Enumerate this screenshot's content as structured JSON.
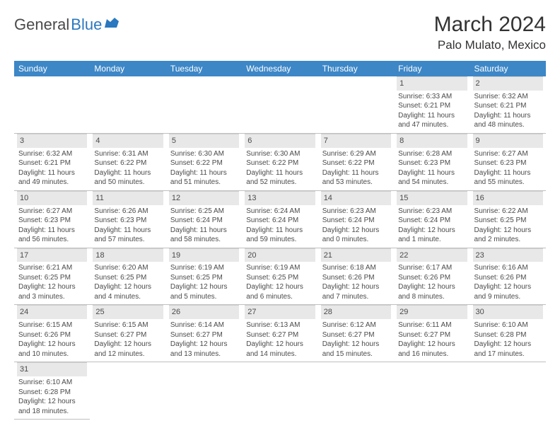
{
  "logo": {
    "part1": "General",
    "part2": "Blue"
  },
  "title": "March 2024",
  "location": "Palo Mulato, Mexico",
  "colors": {
    "header_bg": "#3d87c7",
    "header_text": "#ffffff",
    "daynum_bg": "#e8e8e8",
    "border": "#bfbfbf",
    "text": "#4a4a4a",
    "logo_blue": "#2a78bf",
    "logo_gray": "#4a4a4a"
  },
  "weekdays": [
    "Sunday",
    "Monday",
    "Tuesday",
    "Wednesday",
    "Thursday",
    "Friday",
    "Saturday"
  ],
  "weeks": [
    [
      null,
      null,
      null,
      null,
      null,
      {
        "num": "1",
        "sunrise": "Sunrise: 6:33 AM",
        "sunset": "Sunset: 6:21 PM",
        "day1": "Daylight: 11 hours",
        "day2": "and 47 minutes."
      },
      {
        "num": "2",
        "sunrise": "Sunrise: 6:32 AM",
        "sunset": "Sunset: 6:21 PM",
        "day1": "Daylight: 11 hours",
        "day2": "and 48 minutes."
      }
    ],
    [
      {
        "num": "3",
        "sunrise": "Sunrise: 6:32 AM",
        "sunset": "Sunset: 6:21 PM",
        "day1": "Daylight: 11 hours",
        "day2": "and 49 minutes."
      },
      {
        "num": "4",
        "sunrise": "Sunrise: 6:31 AM",
        "sunset": "Sunset: 6:22 PM",
        "day1": "Daylight: 11 hours",
        "day2": "and 50 minutes."
      },
      {
        "num": "5",
        "sunrise": "Sunrise: 6:30 AM",
        "sunset": "Sunset: 6:22 PM",
        "day1": "Daylight: 11 hours",
        "day2": "and 51 minutes."
      },
      {
        "num": "6",
        "sunrise": "Sunrise: 6:30 AM",
        "sunset": "Sunset: 6:22 PM",
        "day1": "Daylight: 11 hours",
        "day2": "and 52 minutes."
      },
      {
        "num": "7",
        "sunrise": "Sunrise: 6:29 AM",
        "sunset": "Sunset: 6:22 PM",
        "day1": "Daylight: 11 hours",
        "day2": "and 53 minutes."
      },
      {
        "num": "8",
        "sunrise": "Sunrise: 6:28 AM",
        "sunset": "Sunset: 6:23 PM",
        "day1": "Daylight: 11 hours",
        "day2": "and 54 minutes."
      },
      {
        "num": "9",
        "sunrise": "Sunrise: 6:27 AM",
        "sunset": "Sunset: 6:23 PM",
        "day1": "Daylight: 11 hours",
        "day2": "and 55 minutes."
      }
    ],
    [
      {
        "num": "10",
        "sunrise": "Sunrise: 6:27 AM",
        "sunset": "Sunset: 6:23 PM",
        "day1": "Daylight: 11 hours",
        "day2": "and 56 minutes."
      },
      {
        "num": "11",
        "sunrise": "Sunrise: 6:26 AM",
        "sunset": "Sunset: 6:23 PM",
        "day1": "Daylight: 11 hours",
        "day2": "and 57 minutes."
      },
      {
        "num": "12",
        "sunrise": "Sunrise: 6:25 AM",
        "sunset": "Sunset: 6:24 PM",
        "day1": "Daylight: 11 hours",
        "day2": "and 58 minutes."
      },
      {
        "num": "13",
        "sunrise": "Sunrise: 6:24 AM",
        "sunset": "Sunset: 6:24 PM",
        "day1": "Daylight: 11 hours",
        "day2": "and 59 minutes."
      },
      {
        "num": "14",
        "sunrise": "Sunrise: 6:23 AM",
        "sunset": "Sunset: 6:24 PM",
        "day1": "Daylight: 12 hours",
        "day2": "and 0 minutes."
      },
      {
        "num": "15",
        "sunrise": "Sunrise: 6:23 AM",
        "sunset": "Sunset: 6:24 PM",
        "day1": "Daylight: 12 hours",
        "day2": "and 1 minute."
      },
      {
        "num": "16",
        "sunrise": "Sunrise: 6:22 AM",
        "sunset": "Sunset: 6:25 PM",
        "day1": "Daylight: 12 hours",
        "day2": "and 2 minutes."
      }
    ],
    [
      {
        "num": "17",
        "sunrise": "Sunrise: 6:21 AM",
        "sunset": "Sunset: 6:25 PM",
        "day1": "Daylight: 12 hours",
        "day2": "and 3 minutes."
      },
      {
        "num": "18",
        "sunrise": "Sunrise: 6:20 AM",
        "sunset": "Sunset: 6:25 PM",
        "day1": "Daylight: 12 hours",
        "day2": "and 4 minutes."
      },
      {
        "num": "19",
        "sunrise": "Sunrise: 6:19 AM",
        "sunset": "Sunset: 6:25 PM",
        "day1": "Daylight: 12 hours",
        "day2": "and 5 minutes."
      },
      {
        "num": "20",
        "sunrise": "Sunrise: 6:19 AM",
        "sunset": "Sunset: 6:25 PM",
        "day1": "Daylight: 12 hours",
        "day2": "and 6 minutes."
      },
      {
        "num": "21",
        "sunrise": "Sunrise: 6:18 AM",
        "sunset": "Sunset: 6:26 PM",
        "day1": "Daylight: 12 hours",
        "day2": "and 7 minutes."
      },
      {
        "num": "22",
        "sunrise": "Sunrise: 6:17 AM",
        "sunset": "Sunset: 6:26 PM",
        "day1": "Daylight: 12 hours",
        "day2": "and 8 minutes."
      },
      {
        "num": "23",
        "sunrise": "Sunrise: 6:16 AM",
        "sunset": "Sunset: 6:26 PM",
        "day1": "Daylight: 12 hours",
        "day2": "and 9 minutes."
      }
    ],
    [
      {
        "num": "24",
        "sunrise": "Sunrise: 6:15 AM",
        "sunset": "Sunset: 6:26 PM",
        "day1": "Daylight: 12 hours",
        "day2": "and 10 minutes."
      },
      {
        "num": "25",
        "sunrise": "Sunrise: 6:15 AM",
        "sunset": "Sunset: 6:27 PM",
        "day1": "Daylight: 12 hours",
        "day2": "and 12 minutes."
      },
      {
        "num": "26",
        "sunrise": "Sunrise: 6:14 AM",
        "sunset": "Sunset: 6:27 PM",
        "day1": "Daylight: 12 hours",
        "day2": "and 13 minutes."
      },
      {
        "num": "27",
        "sunrise": "Sunrise: 6:13 AM",
        "sunset": "Sunset: 6:27 PM",
        "day1": "Daylight: 12 hours",
        "day2": "and 14 minutes."
      },
      {
        "num": "28",
        "sunrise": "Sunrise: 6:12 AM",
        "sunset": "Sunset: 6:27 PM",
        "day1": "Daylight: 12 hours",
        "day2": "and 15 minutes."
      },
      {
        "num": "29",
        "sunrise": "Sunrise: 6:11 AM",
        "sunset": "Sunset: 6:27 PM",
        "day1": "Daylight: 12 hours",
        "day2": "and 16 minutes."
      },
      {
        "num": "30",
        "sunrise": "Sunrise: 6:10 AM",
        "sunset": "Sunset: 6:28 PM",
        "day1": "Daylight: 12 hours",
        "day2": "and 17 minutes."
      }
    ],
    [
      {
        "num": "31",
        "sunrise": "Sunrise: 6:10 AM",
        "sunset": "Sunset: 6:28 PM",
        "day1": "Daylight: 12 hours",
        "day2": "and 18 minutes."
      },
      null,
      null,
      null,
      null,
      null,
      null
    ]
  ]
}
